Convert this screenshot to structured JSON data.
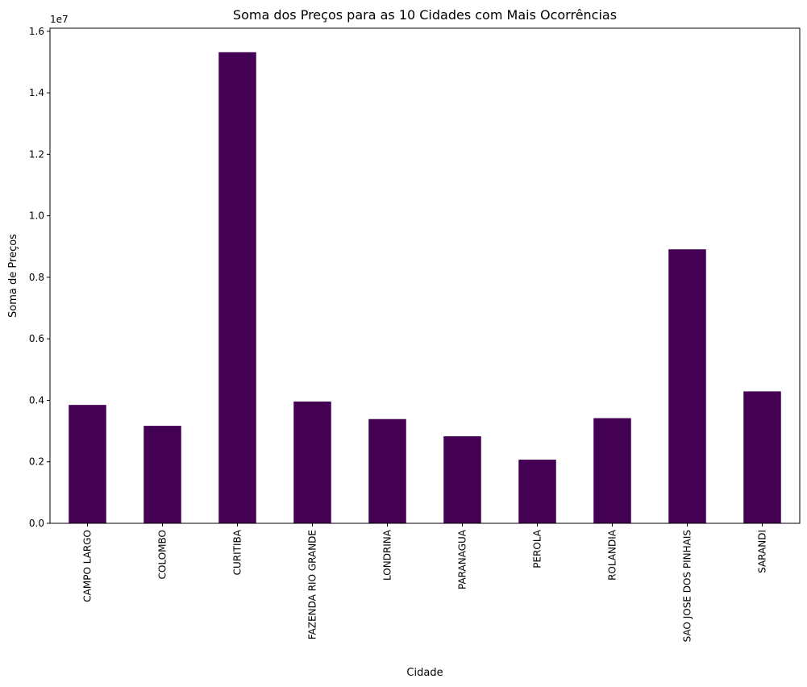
{
  "chart_data": {
    "type": "bar",
    "title": "Soma dos Preços para as 10 Cidades com Mais Ocorrências",
    "xlabel": "Cidade",
    "ylabel": "Soma de Preços",
    "offset_label": "1e7",
    "categories": [
      "CAMPO LARGO",
      "COLOMBO",
      "CURITIBA",
      "FAZENDA RIO GRANDE",
      "LONDRINA",
      "PARANAGUA",
      "PEROLA",
      "ROLANDIA",
      "SAO JOSE DOS PINHAIS",
      "SARANDI"
    ],
    "values": [
      3850000,
      3170000,
      15320000,
      3960000,
      3390000,
      2830000,
      2070000,
      3420000,
      8910000,
      4290000
    ],
    "ylim": [
      0,
      16100000
    ],
    "yticks": [
      0,
      2000000,
      4000000,
      6000000,
      8000000,
      10000000,
      12000000,
      14000000,
      16000000
    ],
    "ytick_labels": [
      "0.0",
      "0.2",
      "0.4",
      "0.6",
      "0.8",
      "1.0",
      "1.2",
      "1.4",
      "1.6"
    ],
    "bar_color": "#440154",
    "grid": false,
    "legend": false
  }
}
